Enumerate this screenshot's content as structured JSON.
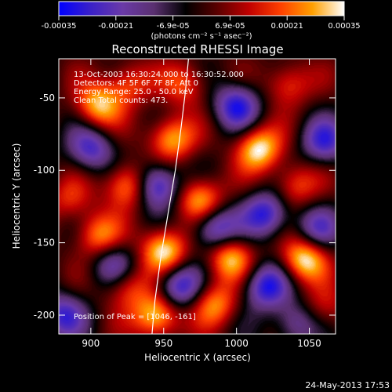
{
  "chart_data": {
    "type": "heatmap",
    "title": "Reconstructed RHESSI Image",
    "xlabel": "Heliocentric X (arcsec)",
    "ylabel": "Heliocentric Y (arcsec)",
    "xlim": [
      878,
      1068
    ],
    "ylim": [
      -213,
      -23
    ],
    "x_ticks": [
      900,
      950,
      1000,
      1050
    ],
    "y_ticks": [
      -50,
      -100,
      -150,
      -200
    ],
    "colorbar": {
      "range": [
        -0.00035,
        0.00035
      ],
      "ticks": [
        "-0.00035",
        "-0.00021",
        "-6.9e-05",
        "6.9e-05",
        "0.00021",
        "0.00035"
      ],
      "unit_label": "(photons cm⁻² s⁻¹ asec⁻²)",
      "colors": [
        "#0000ff",
        "#3a20c8",
        "#6a3aa8",
        "#5a3070",
        "#000000",
        "#5a0000",
        "#c00000",
        "#ff4000",
        "#ffa000",
        "#ffffff"
      ]
    },
    "annotations": [
      "13-Oct-2003 16:30:24.000 to 16:30:52.000",
      "Detectors: 4F 5F 6F 7F 8F, Att 0",
      "Energy Range: 25.0 - 50.0 keV",
      "Clean     Total counts: 473.",
      "Position of Peak = [1046, -161]"
    ],
    "limb": {
      "x": [
        942,
        944,
        948,
        953,
        958,
        962,
        965,
        967
      ],
      "y": [
        -213,
        -190,
        -160,
        -130,
        -100,
        -70,
        -45,
        -23
      ]
    },
    "sources": [
      {
        "x": 905,
        "y": -55,
        "value": 0.0003
      },
      {
        "x": 925,
        "y": -40,
        "value": 0.0002
      },
      {
        "x": 965,
        "y": -40,
        "value": 0.0002
      },
      {
        "x": 1035,
        "y": -40,
        "value": 0.0002
      },
      {
        "x": 955,
        "y": -78,
        "value": 0.0003
      },
      {
        "x": 1015,
        "y": -85,
        "value": 0.00035
      },
      {
        "x": 885,
        "y": -120,
        "value": 0.00015
      },
      {
        "x": 925,
        "y": -110,
        "value": 0.0003
      },
      {
        "x": 975,
        "y": -120,
        "value": 0.0003
      },
      {
        "x": 1040,
        "y": -110,
        "value": 0.0002
      },
      {
        "x": 905,
        "y": -145,
        "value": 0.00025
      },
      {
        "x": 950,
        "y": -155,
        "value": 0.00035
      },
      {
        "x": 995,
        "y": -160,
        "value": 0.0003
      },
      {
        "x": 1046,
        "y": -161,
        "value": 0.00035
      },
      {
        "x": 925,
        "y": -180,
        "value": 0.0002
      },
      {
        "x": 985,
        "y": -192,
        "value": 0.00025
      },
      {
        "x": 945,
        "y": -200,
        "value": 0.00035
      },
      {
        "x": 1060,
        "y": -195,
        "value": 0.00015
      },
      {
        "x": 1000,
        "y": -55,
        "value": -0.0003
      },
      {
        "x": 900,
        "y": -85,
        "value": -0.00025
      },
      {
        "x": 945,
        "y": -110,
        "value": -0.00035
      },
      {
        "x": 985,
        "y": -140,
        "value": -0.0003
      },
      {
        "x": 1020,
        "y": -130,
        "value": -0.0003
      },
      {
        "x": 1060,
        "y": -80,
        "value": -0.00025
      },
      {
        "x": 1055,
        "y": -140,
        "value": -0.0002
      },
      {
        "x": 915,
        "y": -165,
        "value": -0.0002
      },
      {
        "x": 960,
        "y": -180,
        "value": -0.0003
      },
      {
        "x": 1020,
        "y": -180,
        "value": -0.0003
      },
      {
        "x": 880,
        "y": -200,
        "value": -0.00025
      },
      {
        "x": 1040,
        "y": -205,
        "value": -0.0002
      }
    ]
  },
  "footer": {
    "timestamp": "24-May-2013 17:53"
  }
}
